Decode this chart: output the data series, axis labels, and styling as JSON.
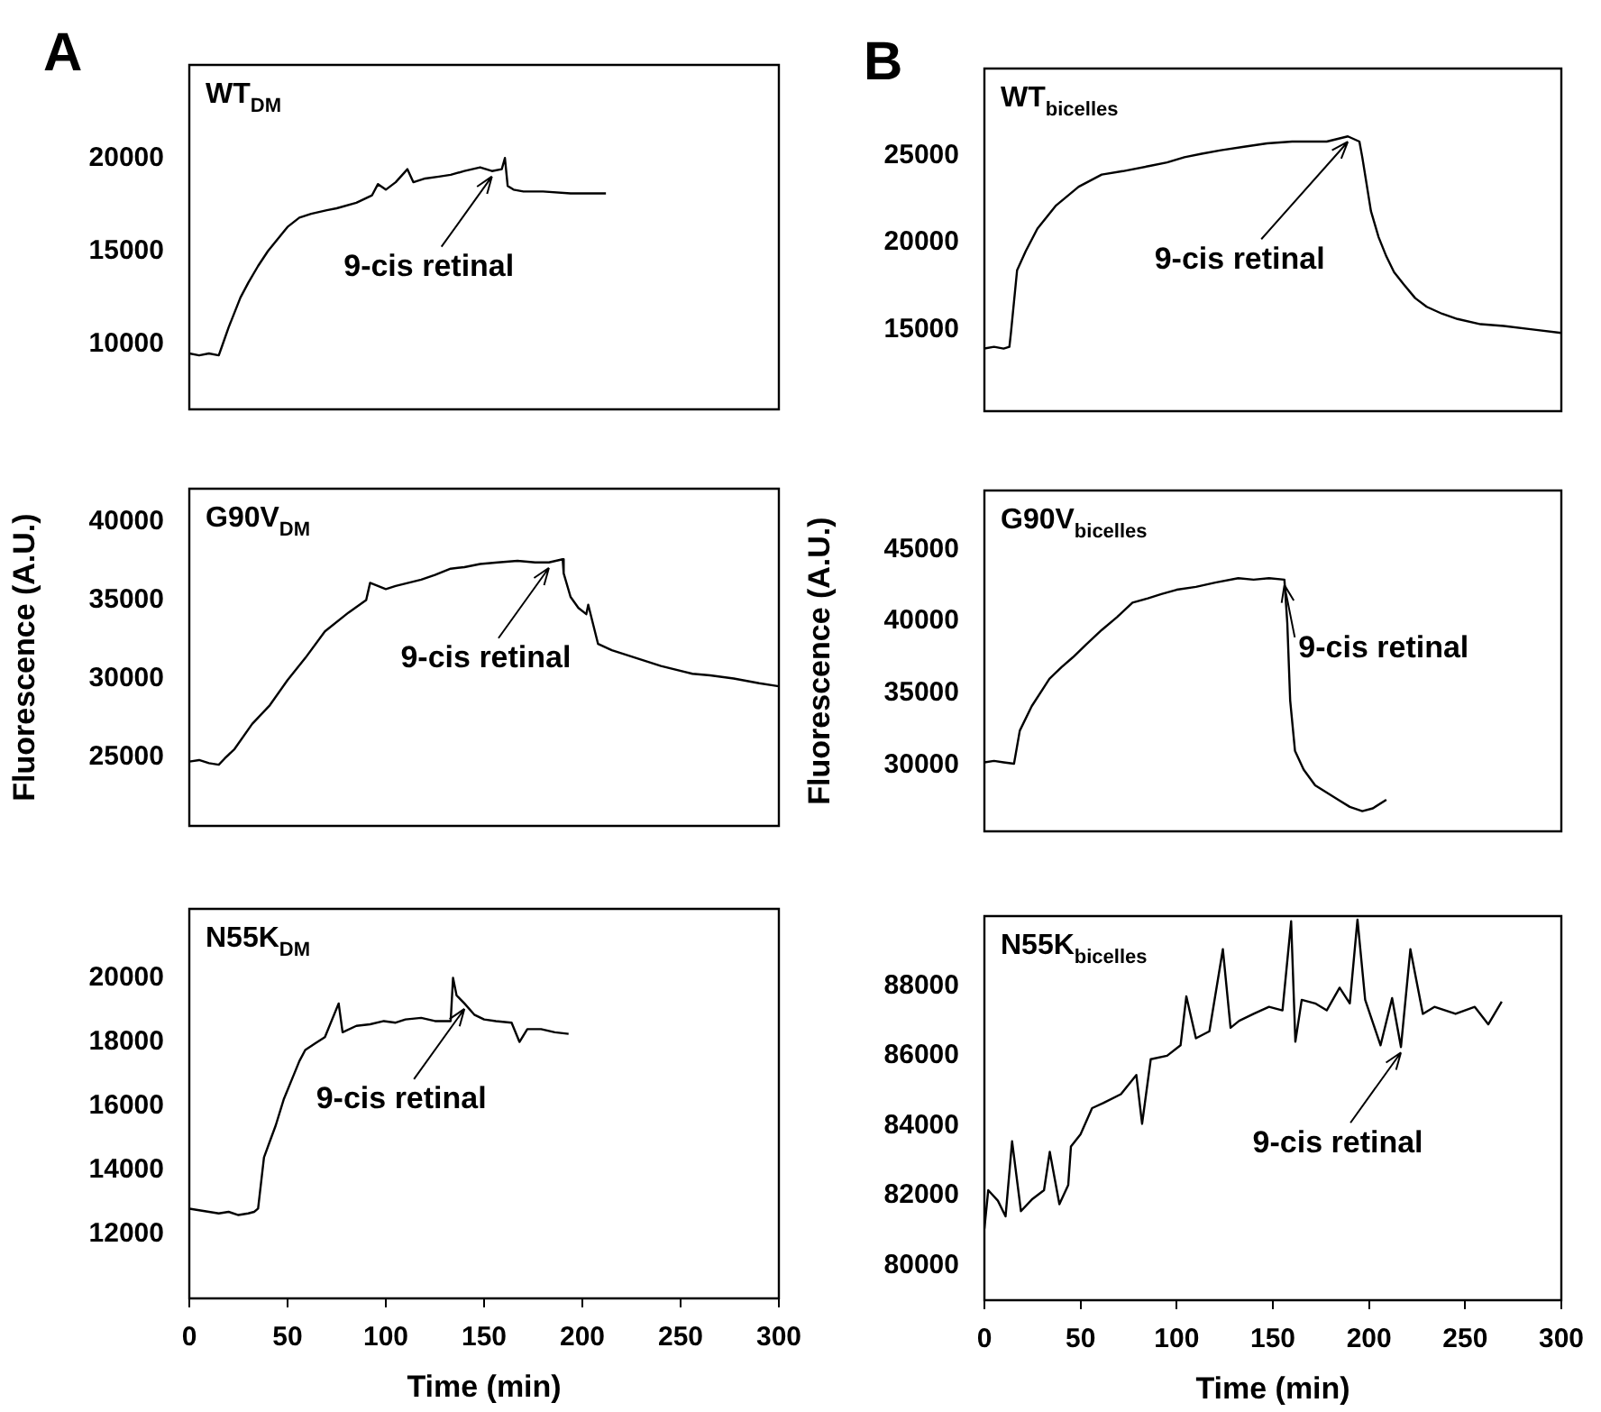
{
  "chart_data": [
    {
      "type": "line",
      "title": "WT$_{DM}$",
      "annotations": [
        "A",
        {
          "text": "9-cis retinal",
          "x": 154,
          "y": 19300
        }
      ],
      "tick_labels": "y",
      "xlim": [
        0,
        300
      ],
      "xticks": [
        0,
        50,
        100,
        150,
        200,
        250,
        300
      ],
      "ylim": [
        6500,
        25000
      ],
      "yticks": [
        10000,
        15000,
        20000
      ],
      "series": [
        {
          "color": "#000000",
          "x": [
            0,
            5,
            10,
            15,
            17,
            20,
            26,
            30,
            35,
            40,
            50,
            56,
            62,
            70,
            75,
            85,
            93,
            96,
            100,
            105,
            111,
            114,
            120,
            127,
            133,
            140,
            148,
            154,
            159,
            160.6,
            162,
            165,
            170,
            180,
            194,
            203,
            212
          ],
          "values": [
            9500,
            9400,
            9500,
            9400,
            10000,
            10900,
            12500,
            13300,
            14200,
            15000,
            16300,
            16800,
            17000,
            17200,
            17300,
            17600,
            18000,
            18600,
            18300,
            18700,
            19400,
            18700,
            18900,
            19000,
            19100,
            19300,
            19500,
            19300,
            19400,
            20000,
            18500,
            18300,
            18200,
            18200,
            18100,
            18100,
            18100
          ]
        }
      ]
    },
    {
      "type": "line",
      "title": "G90V$_{DM}$",
      "ylabel": "Fluorescence (A.U.)",
      "annotations": [
        {
          "text": "9-cis retinal",
          "x": 183,
          "y": 37400
        }
      ],
      "tick_labels": "y",
      "xlim": [
        0,
        300
      ],
      "xticks": [
        0,
        50,
        100,
        150,
        200,
        250,
        300
      ],
      "ylim": [
        20600,
        42100
      ],
      "yticks": [
        25000,
        30000,
        35000,
        40000
      ],
      "series": [
        {
          "color": "#000000",
          "x": [
            0,
            5,
            10,
            15,
            18,
            23,
            32,
            41,
            50,
            59,
            69,
            81,
            90,
            92,
            100,
            105,
            118,
            125,
            133,
            140,
            148,
            157,
            167,
            176,
            183,
            190,
            190.5,
            194,
            198,
            202,
            203,
            208,
            215,
            225,
            240,
            256,
            265,
            277,
            290,
            300
          ],
          "values": [
            24700,
            24800,
            24600,
            24500,
            24900,
            25500,
            27100,
            28300,
            29900,
            31300,
            33000,
            34200,
            35000,
            36100,
            35700,
            35900,
            36300,
            36600,
            37000,
            37100,
            37300,
            37400,
            37500,
            37400,
            37400,
            37600,
            36700,
            35200,
            34500,
            34100,
            34700,
            32200,
            31800,
            31400,
            30800,
            30300,
            30200,
            30000,
            29700,
            29500
          ]
        }
      ]
    },
    {
      "type": "line",
      "title": "N55K$_{DM}$",
      "xlabel": "Time (min)",
      "annotations": [
        {
          "text": "9-cis retinal",
          "x": 140,
          "y": 19200
        }
      ],
      "xlim": [
        0,
        300
      ],
      "xticks": [
        0,
        50,
        100,
        150,
        200,
        250,
        300
      ],
      "ylim": [
        10000,
        22150
      ],
      "yticks": [
        12000,
        14000,
        16000,
        18000,
        20000
      ],
      "series": [
        {
          "color": "#000000",
          "x": [
            0,
            5,
            10,
            15,
            20,
            25,
            30,
            33,
            35,
            38,
            41,
            44,
            48,
            53,
            56,
            59,
            64,
            69,
            76,
            78,
            85,
            92,
            99,
            105,
            110,
            118,
            125,
            133,
            134.2,
            136,
            140,
            145,
            150,
            156,
            164,
            168,
            172,
            179,
            186,
            193
          ],
          "values": [
            12800,
            12750,
            12700,
            12650,
            12700,
            12600,
            12650,
            12700,
            12800,
            14400,
            14900,
            15400,
            16200,
            16950,
            17400,
            17750,
            17950,
            18150,
            19200,
            18300,
            18500,
            18550,
            18650,
            18600,
            18700,
            18750,
            18650,
            18650,
            20000,
            19450,
            19200,
            18850,
            18700,
            18650,
            18600,
            18000,
            18400,
            18400,
            18300,
            18250
          ]
        }
      ]
    },
    {
      "type": "line",
      "title": "WT$_{bicelles}$",
      "annotations": [
        "B",
        {
          "text": "9-cis retinal",
          "x": 189,
          "y": 26100
        }
      ],
      "tick_labels": "y",
      "xlim": [
        0,
        300
      ],
      "xticks": [
        0,
        50,
        100,
        150,
        200,
        250,
        300
      ],
      "ylim": [
        10300,
        30000
      ],
      "yticks": [
        15000,
        20000,
        25000
      ],
      "series": [
        {
          "color": "#000000",
          "x": [
            0,
            5,
            10,
            13,
            13.8,
            17,
            21.5,
            27.6,
            37,
            49,
            61,
            72,
            86,
            95,
            104,
            113,
            123,
            135,
            147,
            160,
            178,
            189,
            195,
            196.5,
            201,
            205,
            209,
            213,
            218,
            224,
            230,
            238,
            246,
            258,
            270,
            285,
            300
          ],
          "values": [
            13900,
            14000,
            13900,
            14000,
            14800,
            18400,
            19500,
            20800,
            22100,
            23200,
            23900,
            24100,
            24400,
            24600,
            24900,
            25100,
            25300,
            25500,
            25700,
            25800,
            25800,
            26100,
            25800,
            24900,
            21800,
            20300,
            19200,
            18300,
            17600,
            16800,
            16300,
            15900,
            15600,
            15300,
            15200,
            15000,
            14800
          ]
        }
      ]
    },
    {
      "type": "line",
      "title": "G90V$_{bicelles}$",
      "ylabel": "Fluorescence (A.U.)",
      "annotations": [
        {
          "text": "9-cis retinal",
          "x": 156,
          "y": 42900
        }
      ],
      "tick_labels": "y",
      "xlim": [
        0,
        300
      ],
      "xticks": [
        0,
        50,
        100,
        150,
        200,
        250,
        300
      ],
      "ylim": [
        25400,
        49100
      ],
      "yticks": [
        30000,
        35000,
        40000,
        45000
      ],
      "series": [
        {
          "color": "#000000",
          "x": [
            0,
            5,
            10,
            15.4,
            18.4,
            24.6,
            33.8,
            40,
            46,
            53,
            61,
            69,
            77,
            85,
            92,
            100,
            110,
            120,
            132,
            140,
            148,
            156,
            157.5,
            159,
            161.5,
            166,
            172,
            178,
            184,
            190,
            196.5,
            202,
            209
          ],
          "values": [
            30200,
            30300,
            30200,
            30100,
            32400,
            34100,
            36000,
            36800,
            37500,
            38400,
            39400,
            40300,
            41300,
            41600,
            41900,
            42200,
            42400,
            42700,
            43000,
            42900,
            43000,
            42900,
            39900,
            34500,
            31000,
            29700,
            28600,
            28100,
            27600,
            27100,
            26800,
            27000,
            27600
          ]
        }
      ]
    },
    {
      "type": "line",
      "title": "N55K$_{bicelles}$",
      "xlabel": "Time (min)",
      "annotations": [
        {
          "text": "9-cis retinal",
          "x": 216.6,
          "y": 86250
        }
      ],
      "xlim": [
        0,
        300
      ],
      "xticks": [
        0,
        50,
        100,
        150,
        200,
        250,
        300
      ],
      "ylim": [
        79000,
        90000
      ],
      "yticks": [
        80000,
        82000,
        84000,
        86000,
        88000
      ],
      "series": [
        {
          "color": "#000000",
          "x": [
            0,
            2,
            7,
            11,
            14.4,
            19,
            25,
            31,
            34,
            39,
            43.6,
            45,
            50,
            56,
            62,
            71,
            79,
            82,
            86.5,
            95,
            102,
            105,
            110,
            117,
            124,
            128,
            132.5,
            140,
            148,
            155,
            159.5,
            161.7,
            165,
            172,
            178,
            184.7,
            190,
            194,
            198,
            206,
            212,
            216.6,
            221.5,
            228,
            234,
            245,
            255,
            262,
            269
          ],
          "values": [
            81050,
            82150,
            81850,
            81400,
            83550,
            81550,
            81900,
            82150,
            83250,
            81750,
            82300,
            83400,
            83750,
            84500,
            84650,
            84900,
            85450,
            84050,
            85900,
            86000,
            86300,
            87700,
            86500,
            86700,
            89050,
            86800,
            87000,
            87200,
            87400,
            87300,
            89850,
            86400,
            87600,
            87500,
            87300,
            87950,
            87500,
            89900,
            87600,
            86300,
            87650,
            86250,
            89050,
            87200,
            87400,
            87200,
            87400,
            86900,
            87550
          ]
        }
      ]
    }
  ]
}
